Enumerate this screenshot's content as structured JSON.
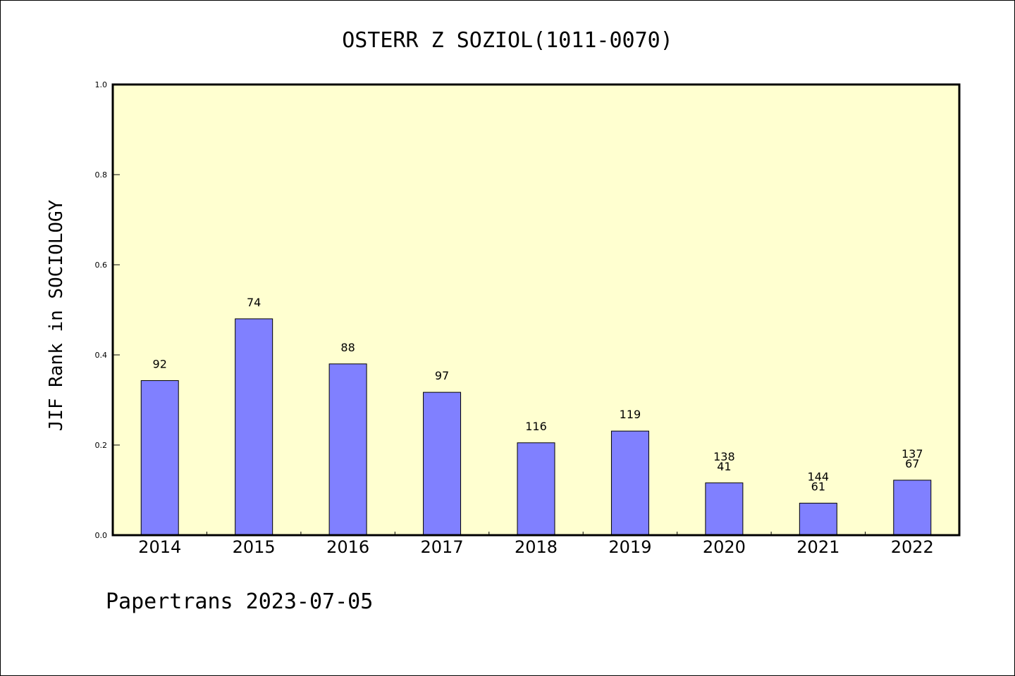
{
  "chart_data": {
    "type": "bar",
    "title": "OSTERR Z SOZIOL(1011-0070)",
    "ylabel": "JIF Rank in SOCIOLOGY",
    "xlabel": "",
    "ylim": [
      0,
      1.0
    ],
    "yticks": [
      "0.0",
      "0.2",
      "0.4",
      "0.6",
      "0.8",
      "1.0"
    ],
    "categories": [
      "2014",
      "2015",
      "2016",
      "2017",
      "2018",
      "2019",
      "2020",
      "2021",
      "2022"
    ],
    "values": [
      0.343,
      0.48,
      0.38,
      0.317,
      0.205,
      0.231,
      0.116,
      0.071,
      0.122
    ],
    "bar_labels": [
      [
        "92"
      ],
      [
        "74"
      ],
      [
        "88"
      ],
      [
        "97"
      ],
      [
        "116"
      ],
      [
        "119"
      ],
      [
        "138",
        "41"
      ],
      [
        "144",
        "61"
      ],
      [
        "137",
        "67"
      ]
    ],
    "grid": false,
    "colors": {
      "plot_background": "#ffffd0",
      "bar_fill": "#8080ff",
      "bar_stroke": "#000000",
      "axis": "#000000"
    }
  },
  "footer": {
    "text": "Papertrans 2023-07-05"
  }
}
